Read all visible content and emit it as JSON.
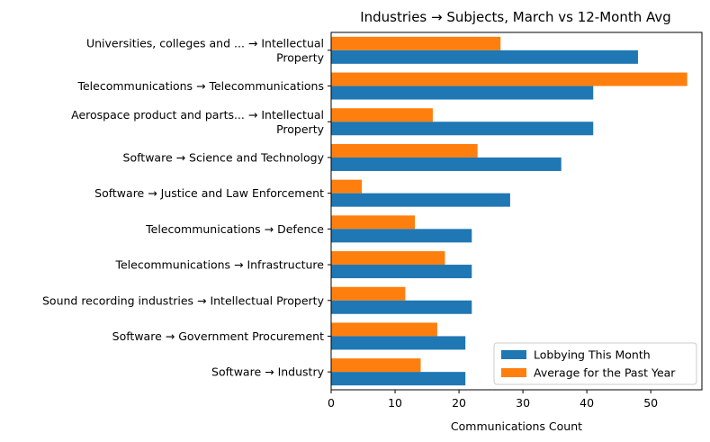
{
  "chart_data": {
    "type": "bar",
    "orientation": "horizontal",
    "title": "Industries → Subjects, March vs 12-Month Avg",
    "xlabel": "Communications Count",
    "ylabel": "",
    "xlim": [
      0,
      58
    ],
    "xticks": [
      0,
      10,
      20,
      30,
      40,
      50
    ],
    "categories": [
      [
        "Universities, colleges and ... → Intellectual",
        "Property"
      ],
      [
        "Telecommunications → Telecommunications"
      ],
      [
        "Aerospace product and parts... → Intellectual",
        "Property"
      ],
      [
        "Software → Science and Technology"
      ],
      [
        "Software → Justice and Law Enforcement"
      ],
      [
        "Telecommunications → Defence"
      ],
      [
        "Telecommunications → Infrastructure"
      ],
      [
        "Sound recording industries → Intellectual Property"
      ],
      [
        "Software → Government Procurement"
      ],
      [
        "Software → Industry"
      ]
    ],
    "series": [
      {
        "name": "Lobbying This Month",
        "color": "#1f77b4",
        "values": [
          48,
          41,
          41,
          36,
          28,
          22,
          22,
          22,
          21,
          21
        ]
      },
      {
        "name": "Average for the Past Year",
        "color": "#ff7f0e",
        "values": [
          26.5,
          55.7,
          15.9,
          22.9,
          4.8,
          13.1,
          17.8,
          11.6,
          16.6,
          14.0
        ]
      }
    ],
    "legend": {
      "position": "lower-right"
    },
    "grid": false
  }
}
